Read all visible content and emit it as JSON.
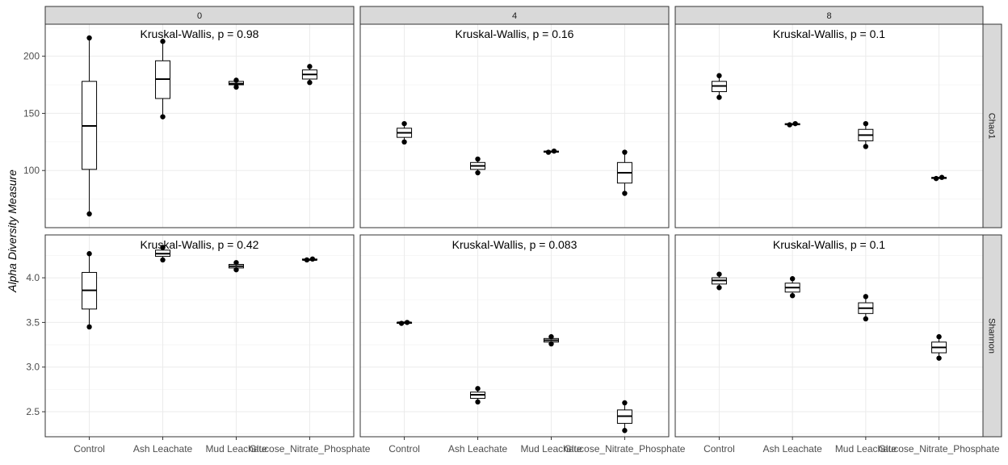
{
  "chart_data": {
    "type": "box",
    "ylabel": "Alpha Diversity Measure",
    "xlabel": "",
    "columns": [
      "0",
      "4",
      "8"
    ],
    "rows": [
      "Chao1",
      "Shannon"
    ],
    "categories": [
      "Control",
      "Ash Leachate",
      "Mud Leachate",
      "Glucose_Nitrate_Phosphate"
    ],
    "row_settings": {
      "Chao1": {
        "ylim": [
          50,
          228
        ],
        "ticks": [
          100,
          150,
          200
        ],
        "tick_labels": [
          "100",
          "150",
          "200"
        ]
      },
      "Shannon": {
        "ylim": [
          2.22,
          4.48
        ],
        "ticks": [
          2.5,
          3.0,
          3.5,
          4.0
        ],
        "tick_labels": [
          "2.5",
          "3.0",
          "3.5",
          "4.0"
        ]
      }
    },
    "grid": true,
    "legend": "none",
    "panels": [
      {
        "row": "Chao1",
        "col": "0",
        "annotation": "Kruskal-Wallis, p = 0.98",
        "boxes": [
          {
            "q1": 101,
            "median": 139,
            "q3": 178,
            "whisker_low": 62,
            "whisker_high": 216,
            "points": [
              62,
              216
            ]
          },
          {
            "q1": 163,
            "median": 180,
            "q3": 196,
            "whisker_low": 147,
            "whisker_high": 213,
            "points": [
              147,
              213
            ]
          },
          {
            "q1": 175,
            "median": 176,
            "q3": 178,
            "whisker_low": 173,
            "whisker_high": 179,
            "points": [
              173,
              179
            ]
          },
          {
            "q1": 180,
            "median": 184,
            "q3": 188,
            "whisker_low": 177,
            "whisker_high": 191,
            "points": [
              177,
              191
            ]
          }
        ]
      },
      {
        "row": "Chao1",
        "col": "4",
        "annotation": "Kruskal-Wallis, p = 0.16",
        "boxes": [
          {
            "q1": 129,
            "median": 133,
            "q3": 137,
            "whisker_low": 125,
            "whisker_high": 141,
            "points": [
              125,
              141
            ]
          },
          {
            "q1": 101,
            "median": 104,
            "q3": 107,
            "whisker_low": 98,
            "whisker_high": 110,
            "points": [
              98,
              110
            ]
          },
          {
            "q1": 116,
            "median": 116.5,
            "q3": 117,
            "whisker_low": 116,
            "whisker_high": 117,
            "points": [
              116,
              117
            ]
          },
          {
            "q1": 89,
            "median": 98,
            "q3": 107,
            "whisker_low": 80,
            "whisker_high": 116,
            "points": [
              80,
              116
            ]
          }
        ]
      },
      {
        "row": "Chao1",
        "col": "8",
        "annotation": "Kruskal-Wallis, p = 0.1",
        "boxes": [
          {
            "q1": 169,
            "median": 174,
            "q3": 178,
            "whisker_low": 164,
            "whisker_high": 183,
            "points": [
              164,
              183
            ]
          },
          {
            "q1": 140,
            "median": 140.5,
            "q3": 141,
            "whisker_low": 140,
            "whisker_high": 141,
            "points": [
              140,
              141
            ]
          },
          {
            "q1": 126,
            "median": 131,
            "q3": 136,
            "whisker_low": 121,
            "whisker_high": 141,
            "points": [
              121,
              141
            ]
          },
          {
            "q1": 93,
            "median": 93.5,
            "q3": 94,
            "whisker_low": 93,
            "whisker_high": 94,
            "points": [
              93,
              94
            ]
          }
        ]
      },
      {
        "row": "Shannon",
        "col": "0",
        "annotation": "Kruskal-Wallis, p = 0.42",
        "boxes": [
          {
            "q1": 3.65,
            "median": 3.86,
            "q3": 4.06,
            "whisker_low": 3.45,
            "whisker_high": 4.27,
            "points": [
              3.45,
              4.27
            ]
          },
          {
            "q1": 4.24,
            "median": 4.27,
            "q3": 4.31,
            "whisker_low": 4.2,
            "whisker_high": 4.34,
            "points": [
              4.2,
              4.34
            ]
          },
          {
            "q1": 4.11,
            "median": 4.13,
            "q3": 4.15,
            "whisker_low": 4.09,
            "whisker_high": 4.17,
            "points": [
              4.09,
              4.17
            ]
          },
          {
            "q1": 4.2,
            "median": 4.2,
            "q3": 4.21,
            "whisker_low": 4.2,
            "whisker_high": 4.21,
            "points": [
              4.2,
              4.21
            ]
          }
        ]
      },
      {
        "row": "Shannon",
        "col": "4",
        "annotation": "Kruskal-Wallis, p = 0.083",
        "boxes": [
          {
            "q1": 3.49,
            "median": 3.5,
            "q3": 3.5,
            "whisker_low": 3.49,
            "whisker_high": 3.5,
            "points": [
              3.49,
              3.5
            ]
          },
          {
            "q1": 2.65,
            "median": 2.69,
            "q3": 2.72,
            "whisker_low": 2.61,
            "whisker_high": 2.76,
            "points": [
              2.61,
              2.76
            ]
          },
          {
            "q1": 3.28,
            "median": 3.3,
            "q3": 3.32,
            "whisker_low": 3.26,
            "whisker_high": 3.34,
            "points": [
              3.26,
              3.34
            ]
          },
          {
            "q1": 2.37,
            "median": 2.45,
            "q3": 2.52,
            "whisker_low": 2.29,
            "whisker_high": 2.6,
            "points": [
              2.29,
              2.6
            ]
          }
        ]
      },
      {
        "row": "Shannon",
        "col": "8",
        "annotation": "Kruskal-Wallis, p = 0.1",
        "boxes": [
          {
            "q1": 3.93,
            "median": 3.97,
            "q3": 4.0,
            "whisker_low": 3.89,
            "whisker_high": 4.04,
            "points": [
              3.89,
              4.04
            ]
          },
          {
            "q1": 3.84,
            "median": 3.89,
            "q3": 3.94,
            "whisker_low": 3.8,
            "whisker_high": 3.99,
            "points": [
              3.8,
              3.99
            ]
          },
          {
            "q1": 3.6,
            "median": 3.66,
            "q3": 3.72,
            "whisker_low": 3.54,
            "whisker_high": 3.79,
            "points": [
              3.54,
              3.79
            ]
          },
          {
            "q1": 3.16,
            "median": 3.22,
            "q3": 3.28,
            "whisker_low": 3.1,
            "whisker_high": 3.34,
            "points": [
              3.1,
              3.34
            ]
          }
        ]
      }
    ]
  }
}
